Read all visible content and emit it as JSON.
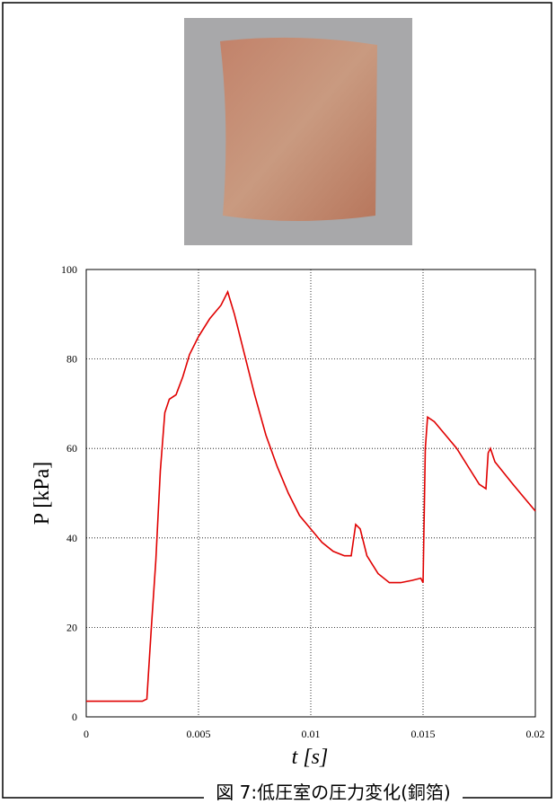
{
  "chart_data": {
    "type": "line",
    "caption": "図 7:低圧室の圧力変化(銅箔)",
    "x_label": "t [s]",
    "y_label": "P [kPa]",
    "xlim": [
      0,
      0.02
    ],
    "xticks": [
      0,
      0.005,
      0.01,
      0.015,
      0.02
    ],
    "ylim": [
      0,
      100
    ],
    "yticks": [
      0,
      20,
      40,
      60,
      80,
      100
    ],
    "grid": true,
    "series": [
      {
        "color": "#e00000",
        "x": [
          0,
          0.0025,
          0.0027,
          0.0029,
          0.0031,
          0.0033,
          0.0035,
          0.0037,
          0.004,
          0.0043,
          0.0046,
          0.005,
          0.0055,
          0.006,
          0.0063,
          0.0066,
          0.007,
          0.0075,
          0.008,
          0.0085,
          0.009,
          0.0095,
          0.01,
          0.0105,
          0.011,
          0.0115,
          0.0118,
          0.012,
          0.0122,
          0.0125,
          0.013,
          0.0135,
          0.014,
          0.0145,
          0.0149,
          0.015,
          0.0151,
          0.0152,
          0.0155,
          0.016,
          0.0165,
          0.017,
          0.0175,
          0.0178,
          0.0179,
          0.018,
          0.0182,
          0.019,
          0.0195,
          0.02
        ],
        "values": [
          3.5,
          3.5,
          4,
          20,
          35,
          55,
          68,
          71,
          72,
          76,
          81,
          85,
          89,
          92,
          95,
          90,
          82,
          72,
          63,
          56,
          50,
          45,
          42,
          39,
          37,
          36,
          36,
          43,
          42,
          36,
          32,
          30,
          30,
          30.5,
          31,
          30,
          60,
          67,
          66,
          63,
          60,
          56,
          52,
          51,
          59,
          60,
          57,
          52,
          49,
          46
        ]
      }
    ]
  }
}
